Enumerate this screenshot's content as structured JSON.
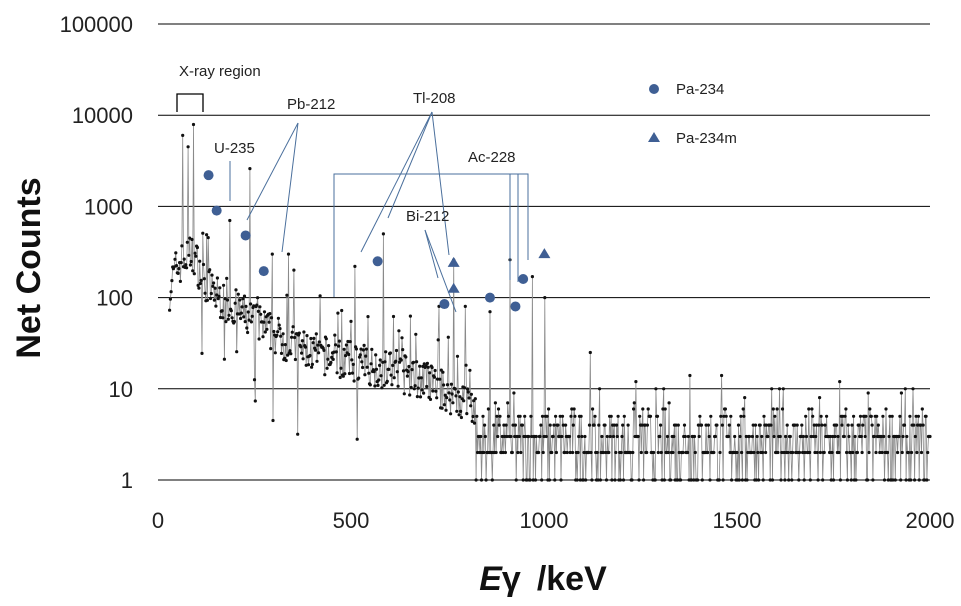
{
  "chart_data": {
    "type": "scatter",
    "title": "",
    "xlabel": {
      "symbol": "E",
      "subscript": "γ",
      "unit": "/keV"
    },
    "ylabel": "Net Counts",
    "xlim": [
      0,
      2000
    ],
    "ylim": [
      1,
      100000
    ],
    "yscale": "log",
    "grid": "horizontal",
    "x_ticks": [
      "0",
      "500",
      "1000",
      "1500",
      "2000"
    ],
    "y_ticks": [
      "1",
      "10",
      "100",
      "1000",
      "10000",
      "100000"
    ],
    "legend_position": "top-right",
    "series": [
      {
        "name": "Pa-234",
        "marker": "circle",
        "color": "#3f5f94",
        "points": [
          [
            131,
            2200
          ],
          [
            152,
            900
          ],
          [
            227,
            480
          ],
          [
            274,
            195
          ],
          [
            569,
            250
          ],
          [
            742,
            85
          ],
          [
            860,
            100
          ],
          [
            926,
            80
          ],
          [
            946,
            160
          ]
        ]
      },
      {
        "name": "Pa-234m",
        "marker": "triangle",
        "color": "#3f5f94",
        "points": [
          [
            766,
            240
          ],
          [
            766,
            125
          ],
          [
            1001,
            300
          ]
        ]
      }
    ],
    "spectrum_profile": [
      [
        30,
        120
      ],
      [
        45,
        200
      ],
      [
        60,
        240
      ],
      [
        75,
        280
      ],
      [
        90,
        300
      ],
      [
        100,
        250
      ],
      [
        115,
        160
      ],
      [
        140,
        120
      ],
      [
        170,
        90
      ],
      [
        200,
        75
      ],
      [
        250,
        55
      ],
      [
        300,
        40
      ],
      [
        350,
        30
      ],
      [
        400,
        25
      ],
      [
        450,
        22
      ],
      [
        500,
        20
      ],
      [
        550,
        18
      ],
      [
        600,
        16
      ],
      [
        650,
        14
      ],
      [
        700,
        12
      ],
      [
        750,
        9
      ],
      [
        800,
        7
      ],
      [
        850,
        5
      ],
      [
        900,
        4.5
      ],
      [
        950,
        4
      ],
      [
        1000,
        3.5
      ],
      [
        1200,
        2.8
      ],
      [
        1500,
        2.5
      ],
      [
        2000,
        2.3
      ]
    ],
    "spectrum_peaks": [
      [
        63,
        6000
      ],
      [
        77,
        4500
      ],
      [
        92,
        7900
      ],
      [
        186,
        700
      ],
      [
        238,
        2600
      ],
      [
        295,
        300
      ],
      [
        338,
        300
      ],
      [
        352,
        200
      ],
      [
        510,
        220
      ],
      [
        583,
        500
      ],
      [
        727,
        80
      ],
      [
        765,
        260
      ],
      [
        795,
        80
      ],
      [
        860,
        70
      ],
      [
        911,
        260
      ],
      [
        969,
        170
      ],
      [
        1001,
        100
      ],
      [
        1120,
        25
      ],
      [
        1238,
        12
      ],
      [
        1378,
        14
      ],
      [
        1460,
        14
      ],
      [
        1620,
        10
      ],
      [
        1765,
        12
      ]
    ],
    "annotations": [
      {
        "id": "xray",
        "text": "X-ray region"
      },
      {
        "id": "u235",
        "text": "U-235"
      },
      {
        "id": "pb212",
        "text": "Pb-212"
      },
      {
        "id": "tl208",
        "text": "Tl-208"
      },
      {
        "id": "ac228",
        "text": "Ac-228"
      },
      {
        "id": "bi212",
        "text": "Bi-212"
      }
    ]
  }
}
